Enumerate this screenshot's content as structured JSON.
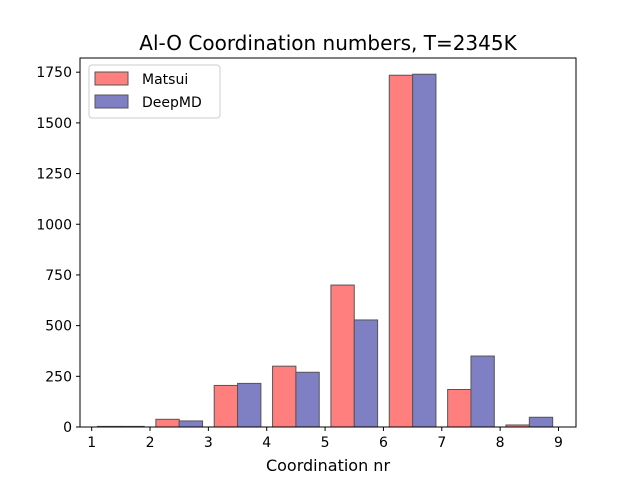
{
  "chart_data": {
    "type": "bar",
    "title": "Al-O Coordination numbers, T=2345K",
    "xlabel": "Coordination nr",
    "ylabel": "",
    "xlim": [
      0.8,
      9.3
    ],
    "ylim": [
      0,
      1820
    ],
    "xticks": [
      1,
      2,
      3,
      4,
      5,
      6,
      7,
      8,
      9
    ],
    "yticks": [
      0,
      250,
      500,
      750,
      1000,
      1250,
      1500,
      1750
    ],
    "categories": [
      1,
      2,
      3,
      4,
      5,
      6,
      7,
      8
    ],
    "series": [
      {
        "name": "Matsui",
        "color": "#ff7f7f",
        "values": [
          3,
          38,
          205,
          300,
          700,
          1735,
          185,
          10
        ]
      },
      {
        "name": "DeepMD",
        "color": "#7f7fc4",
        "values": [
          3,
          30,
          215,
          270,
          528,
          1740,
          350,
          48
        ]
      }
    ],
    "legend_position": "top-left",
    "grid": false
  }
}
